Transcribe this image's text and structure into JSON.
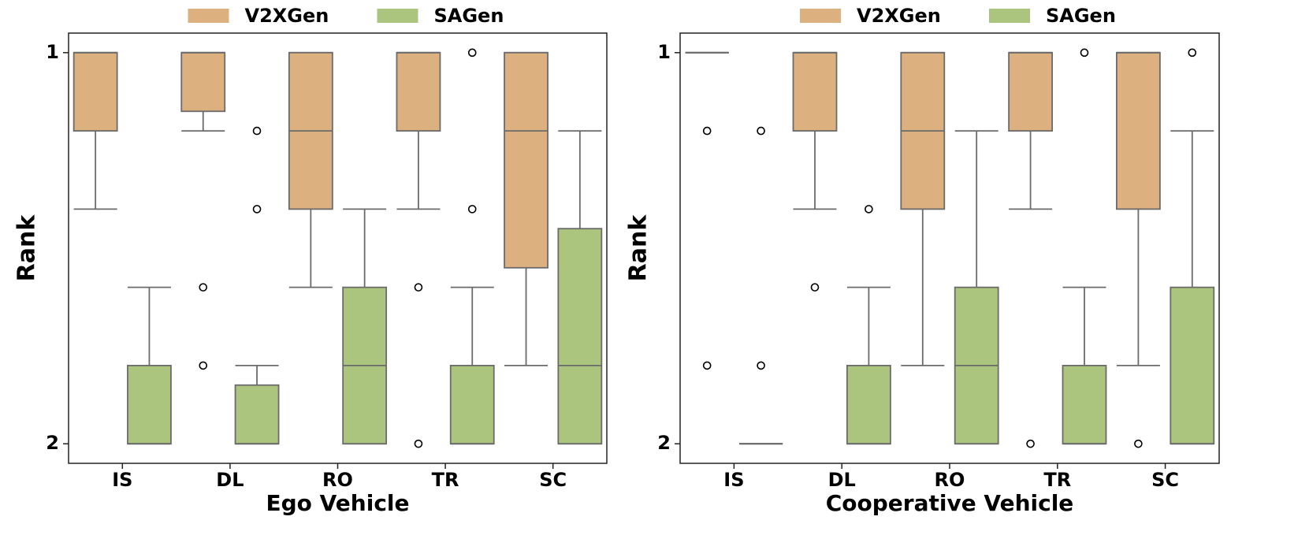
{
  "chart_data": [
    {
      "type": "box",
      "xlabel": "Ego Vehicle",
      "ylabel": "Rank",
      "categories": [
        "IS",
        "DL",
        "RO",
        "TR",
        "SC"
      ],
      "ylim": [
        0.95,
        2.05
      ],
      "yticks": [
        1,
        2
      ],
      "y_inverted": true,
      "legend": "upper center",
      "series": [
        {
          "name": "V2XGen",
          "color": "#ddb07f",
          "boxes": [
            {
              "min": 1,
              "q1": 1,
              "median": 1,
              "q3": 1.2,
              "max": 1.4,
              "outliers": []
            },
            {
              "min": 1,
              "q1": 1,
              "median": 1,
              "q3": 1.15,
              "max": 1.2,
              "outliers": [
                1.6,
                1.8
              ]
            },
            {
              "min": 1,
              "q1": 1,
              "median": 1.2,
              "q3": 1.4,
              "max": 1.6,
              "outliers": []
            },
            {
              "min": 1,
              "q1": 1,
              "median": 1,
              "q3": 1.2,
              "max": 1.4,
              "outliers": [
                1.6,
                2
              ]
            },
            {
              "min": 1,
              "q1": 1,
              "median": 1.2,
              "q3": 1.55,
              "max": 1.8,
              "outliers": []
            }
          ]
        },
        {
          "name": "SAGen",
          "color": "#abc57f",
          "boxes": [
            {
              "min": 1.6,
              "q1": 1.8,
              "median": 2,
              "q3": 2,
              "max": 2,
              "outliers": []
            },
            {
              "min": 1.8,
              "q1": 1.85,
              "median": 2,
              "q3": 2,
              "max": 2,
              "outliers": [
                1.2,
                1.4
              ]
            },
            {
              "min": 1.4,
              "q1": 1.6,
              "median": 1.8,
              "q3": 2,
              "max": 2,
              "outliers": []
            },
            {
              "min": 1.6,
              "q1": 1.8,
              "median": 2,
              "q3": 2,
              "max": 2,
              "outliers": [
                1,
                1.4
              ]
            },
            {
              "min": 1.2,
              "q1": 1.45,
              "median": 1.8,
              "q3": 2,
              "max": 2,
              "outliers": []
            }
          ]
        }
      ]
    },
    {
      "type": "box",
      "xlabel": "Cooperative Vehicle",
      "ylabel": "Rank",
      "categories": [
        "IS",
        "DL",
        "RO",
        "TR",
        "SC"
      ],
      "ylim": [
        0.95,
        2.05
      ],
      "yticks": [
        1,
        2
      ],
      "y_inverted": true,
      "legend": "upper center",
      "series": [
        {
          "name": "V2XGen",
          "color": "#ddb07f",
          "boxes": [
            {
              "min": 1,
              "q1": 1,
              "median": 1,
              "q3": 1,
              "max": 1,
              "outliers": [
                1.2,
                1.8
              ]
            },
            {
              "min": 1,
              "q1": 1,
              "median": 1,
              "q3": 1.2,
              "max": 1.4,
              "outliers": [
                1.6
              ]
            },
            {
              "min": 1,
              "q1": 1,
              "median": 1.2,
              "q3": 1.4,
              "max": 1.8,
              "outliers": []
            },
            {
              "min": 1,
              "q1": 1,
              "median": 1,
              "q3": 1.2,
              "max": 1.4,
              "outliers": [
                2
              ]
            },
            {
              "min": 1,
              "q1": 1,
              "median": 1,
              "q3": 1.4,
              "max": 1.8,
              "outliers": [
                2
              ]
            }
          ]
        },
        {
          "name": "SAGen",
          "color": "#abc57f",
          "boxes": [
            {
              "min": 2,
              "q1": 2,
              "median": 2,
              "q3": 2,
              "max": 2,
              "outliers": [
                1.2,
                1.8
              ]
            },
            {
              "min": 1.6,
              "q1": 1.8,
              "median": 2,
              "q3": 2,
              "max": 2,
              "outliers": [
                1.4
              ]
            },
            {
              "min": 1.2,
              "q1": 1.6,
              "median": 1.8,
              "q3": 2,
              "max": 2,
              "outliers": []
            },
            {
              "min": 1.6,
              "q1": 1.8,
              "median": 2,
              "q3": 2,
              "max": 2,
              "outliers": [
                1
              ]
            },
            {
              "min": 1.2,
              "q1": 1.6,
              "median": 2,
              "q3": 2,
              "max": 2,
              "outliers": [
                1
              ]
            }
          ]
        }
      ]
    }
  ]
}
